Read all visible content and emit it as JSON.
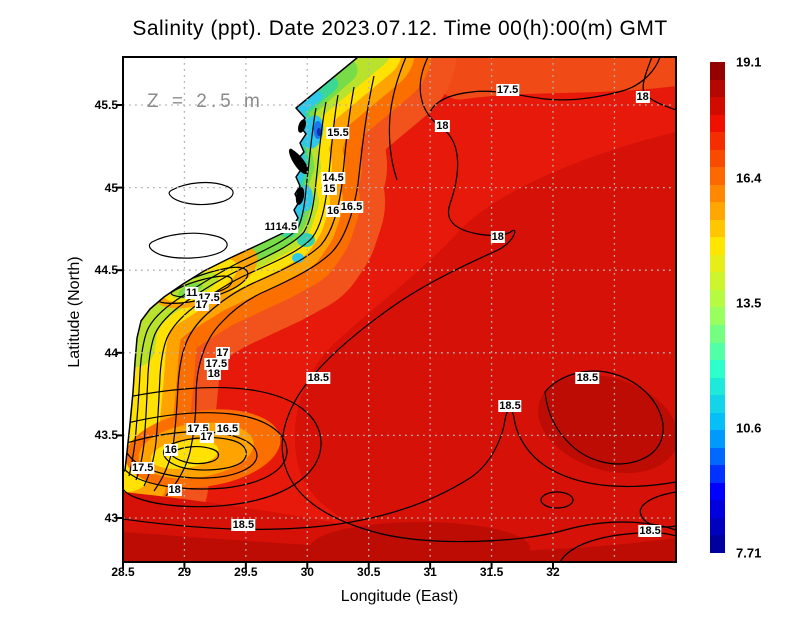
{
  "title": "Salinity (ppt). Date 2023.07.12. Time 00(h):00(m) GMT",
  "annotation": "Z = 2.5 m",
  "axes": {
    "x": {
      "label": "Longitude (East)",
      "ticks": [
        "28.5",
        "29",
        "29.5",
        "30",
        "30.5",
        "31",
        "31.5",
        "32"
      ],
      "grid": [
        29,
        29.5,
        30,
        30.5,
        31,
        31.5,
        32,
        32.5
      ]
    },
    "y": {
      "label": "Latitude (North)",
      "ticks": [
        "45.5",
        "45",
        "44.5",
        "44",
        "43.5",
        "43"
      ],
      "grid": [
        45.5,
        45,
        44.5,
        44,
        43.5,
        43
      ]
    }
  },
  "colorbar": {
    "min": 7.71,
    "max": 19.1,
    "segments": 28,
    "labels": [
      {
        "text": "19.1",
        "value": 19.1
      },
      {
        "text": "16.4",
        "value": 16.4
      },
      {
        "text": "13.5",
        "value": 13.5
      },
      {
        "text": "10.6",
        "value": 10.6
      },
      {
        "text": "7.71",
        "value": 7.71
      }
    ],
    "stops": [
      "#00008f",
      "#0000ff",
      "#00b4ff",
      "#2cffca",
      "#aaff4c",
      "#ffe600",
      "#ff7800",
      "#f01000",
      "#850000"
    ]
  },
  "chart_data": {
    "type": "heatmap",
    "variable": "Salinity (ppt)",
    "depth_annotation": "Z = 2.5 m",
    "date": "2023.07.12",
    "time": "00(h):00(m) GMT",
    "xlabel": "Longitude (East)",
    "ylabel": "Latitude (North)",
    "xlim": [
      28.5,
      33.0
    ],
    "ylim": [
      42.73,
      45.79
    ],
    "grid": true,
    "colorbar_range": [
      7.71,
      19.1
    ],
    "colorbar_ticks": [
      19.1,
      16.4,
      13.5,
      10.6,
      7.71
    ],
    "contour_interval": 0.5,
    "contour_labels": [
      {
        "text": "17.5",
        "lon": 31.63,
        "lat": 45.59
      },
      {
        "text": "18",
        "lon": 32.73,
        "lat": 45.55
      },
      {
        "text": "18",
        "lon": 31.1,
        "lat": 45.37
      },
      {
        "text": "15.5",
        "lon": 30.25,
        "lat": 45.33
      },
      {
        "text": "14.5",
        "lon": 30.21,
        "lat": 45.06
      },
      {
        "text": "15",
        "lon": 30.18,
        "lat": 44.99
      },
      {
        "text": "16.5",
        "lon": 30.36,
        "lat": 44.88
      },
      {
        "text": "16",
        "lon": 30.21,
        "lat": 44.86
      },
      {
        "text": "11",
        "lon": 29.7,
        "lat": 44.76
      },
      {
        "text": "14.5",
        "lon": 29.83,
        "lat": 44.76
      },
      {
        "text": "18",
        "lon": 31.55,
        "lat": 44.7
      },
      {
        "text": "11",
        "lon": 29.06,
        "lat": 44.36
      },
      {
        "text": "17.5",
        "lon": 29.2,
        "lat": 44.33
      },
      {
        "text": "17",
        "lon": 29.14,
        "lat": 44.29
      },
      {
        "text": "17",
        "lon": 29.31,
        "lat": 44.0
      },
      {
        "text": "17.5",
        "lon": 29.26,
        "lat": 43.93
      },
      {
        "text": "18",
        "lon": 29.24,
        "lat": 43.87
      },
      {
        "text": "18.5",
        "lon": 30.09,
        "lat": 43.85
      },
      {
        "text": "18.5",
        "lon": 32.28,
        "lat": 43.85
      },
      {
        "text": "18.5",
        "lon": 31.65,
        "lat": 43.68
      },
      {
        "text": "17.5",
        "lon": 29.11,
        "lat": 43.54
      },
      {
        "text": "16.5",
        "lon": 29.35,
        "lat": 43.54
      },
      {
        "text": "17",
        "lon": 29.18,
        "lat": 43.49
      },
      {
        "text": "16",
        "lon": 28.89,
        "lat": 43.41
      },
      {
        "text": "17.5",
        "lon": 28.66,
        "lat": 43.3
      },
      {
        "text": "18",
        "lon": 28.92,
        "lat": 43.17
      },
      {
        "text": "18.5",
        "lon": 29.48,
        "lat": 42.96
      },
      {
        "text": "18.5",
        "lon": 32.79,
        "lat": 42.92
      }
    ]
  }
}
